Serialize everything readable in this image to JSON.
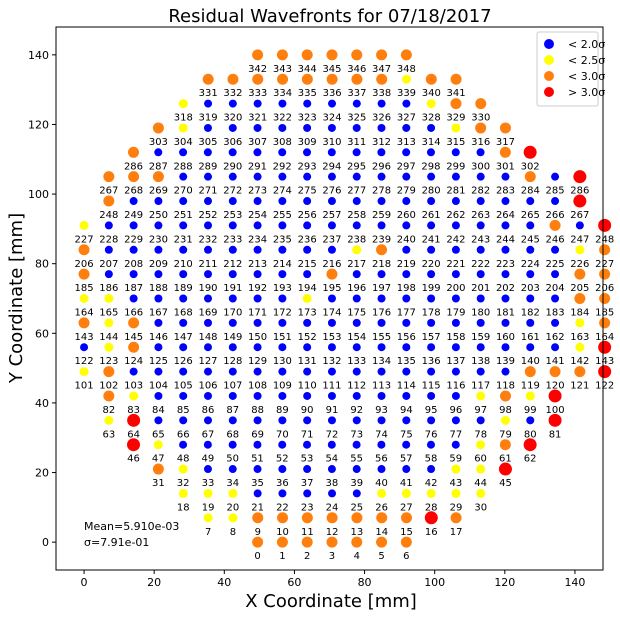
{
  "chart_data": {
    "type": "scatter",
    "title": "Residual Wavefronts for 07/18/2017",
    "xlabel": "X Coordinate [mm]",
    "ylabel": "Y Coordinate [mm]",
    "xlim": [
      -8,
      148
    ],
    "ylim": [
      -8,
      148
    ],
    "xticks": [
      0,
      20,
      40,
      60,
      80,
      100,
      120,
      140
    ],
    "yticks": [
      0,
      20,
      40,
      60,
      80,
      100,
      120,
      140
    ],
    "grid": false,
    "legend_position": "top-right",
    "categories": {
      "b": {
        "label": "< 2.0σ",
        "color": "#0000ff"
      },
      "y": {
        "label": "< 2.5σ",
        "color": "#ffff00"
      },
      "o": {
        "label": "< 3.0σ",
        "color": "#ff7f0e"
      },
      "r": {
        "label": "> 3.0σ",
        "color": "#ff0000"
      }
    },
    "legend_order": [
      "b",
      "y",
      "o",
      "r"
    ],
    "annotations": {
      "mean": "Mean=5.910e-03",
      "sigma": "σ=7.91e-01"
    },
    "rows": [
      {
        "y": 140,
        "x0": 49.5,
        "start": 342,
        "cats": "ooooooo"
      },
      {
        "y": 133,
        "x0": 35.4,
        "start": 331,
        "cats": "ooooooooyoo"
      },
      {
        "y": 126,
        "x0": 28.3,
        "start": 318,
        "cats": "ybbbbbbbbbyoo"
      },
      {
        "y": 119,
        "x0": 21.2,
        "start": 303,
        "cats": "oybbbbbbbbbbyoo"
      },
      {
        "y": 112,
        "x0": 14.1,
        "start": 286,
        "cats": "obbbbbbbbbbbbbbor"
      },
      {
        "y": 105,
        "x0": 7.07,
        "start": 267,
        "cats": "ooobbbbbbbbbbbbbbobr"
      },
      {
        "y": 98,
        "x0": 7.07,
        "start": 248,
        "cats": "obbbbbbbbbbbbbbbbbbr"
      },
      {
        "y": 91,
        "x0": 0,
        "start": 227,
        "cats": "ybbbbbbbbbbbbbbbbbbobr"
      },
      {
        "y": 84,
        "x0": 0,
        "start": 206,
        "cats": "obbbbbbbbbbyobbbbbbbyo"
      },
      {
        "y": 77,
        "x0": 0,
        "start": 185,
        "cats": "obbbbbbbbbobbbbbbbbboo"
      },
      {
        "y": 70,
        "x0": 0,
        "start": 164,
        "cats": "yybbbbbbbybbbbbbbbbboo"
      },
      {
        "y": 63,
        "x0": 0,
        "start": 143,
        "cats": "oyobbbbbbbbbbbbbbbbbyo"
      },
      {
        "y": 56,
        "x0": 0,
        "start": 122,
        "cats": "byobbbbbbbbbbbbbbbbbyr"
      },
      {
        "y": 49,
        "x0": 0,
        "start": 101,
        "cats": "yobbbbbbbbbbbbbbbbooor"
      },
      {
        "y": 42,
        "x0": 7.07,
        "start": 82,
        "cats": "oybbbbbbbbbbbbbyoyr"
      },
      {
        "y": 35,
        "x0": 7.07,
        "start": 63,
        "cats": "yrbbbbbbbbbbbbbbybr"
      },
      {
        "y": 28,
        "x0": 14.1,
        "start": 46,
        "cats": "rybbbbbbbbbbbbyor"
      },
      {
        "y": 21,
        "x0": 21.2,
        "start": 31,
        "cats": "oybbbbbbbbbbyyr"
      },
      {
        "y": 14,
        "x0": 28.3,
        "start": 18,
        "cats": "yyybbbbbyyyyy"
      },
      {
        "y": 7,
        "x0": 35.4,
        "start": 7,
        "cats": "yyoooooooro"
      },
      {
        "y": 0,
        "x0": 49.5,
        "start": 0,
        "cats": "ooooooo"
      }
    ]
  }
}
